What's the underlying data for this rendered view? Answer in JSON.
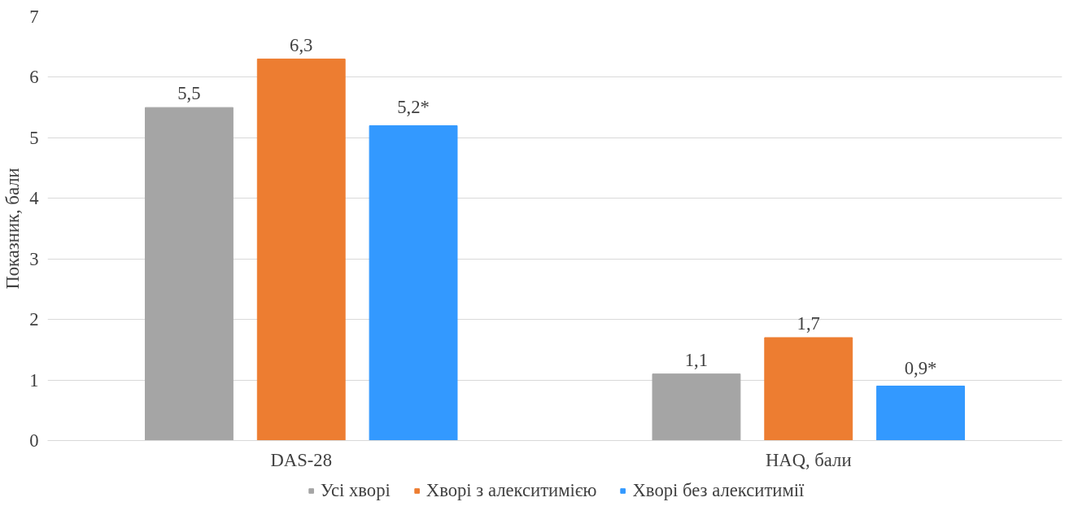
{
  "chart_data": {
    "type": "bar",
    "ylabel": "Показник, бали",
    "categories": [
      "DAS-28",
      "HAQ, бали"
    ],
    "series": [
      {
        "name": "Усі хворі",
        "color": "#a5a5a5",
        "values": [
          5.5,
          1.1
        ],
        "value_labels": [
          "5,5",
          "1,1"
        ]
      },
      {
        "name": "Хворі з алекситимією",
        "color": "#ed7d31",
        "values": [
          6.3,
          1.7
        ],
        "value_labels": [
          "6,3",
          "1,7"
        ]
      },
      {
        "name": "Хворі без алекситимії",
        "color": "#3399ff",
        "values": [
          5.2,
          0.9
        ],
        "value_labels": [
          "5,2*",
          "0,9*"
        ]
      }
    ],
    "ylim": [
      0,
      7
    ],
    "yticks": [
      0,
      1,
      2,
      3,
      4,
      5,
      6,
      7
    ],
    "grid": "y",
    "legend": "bottom"
  }
}
